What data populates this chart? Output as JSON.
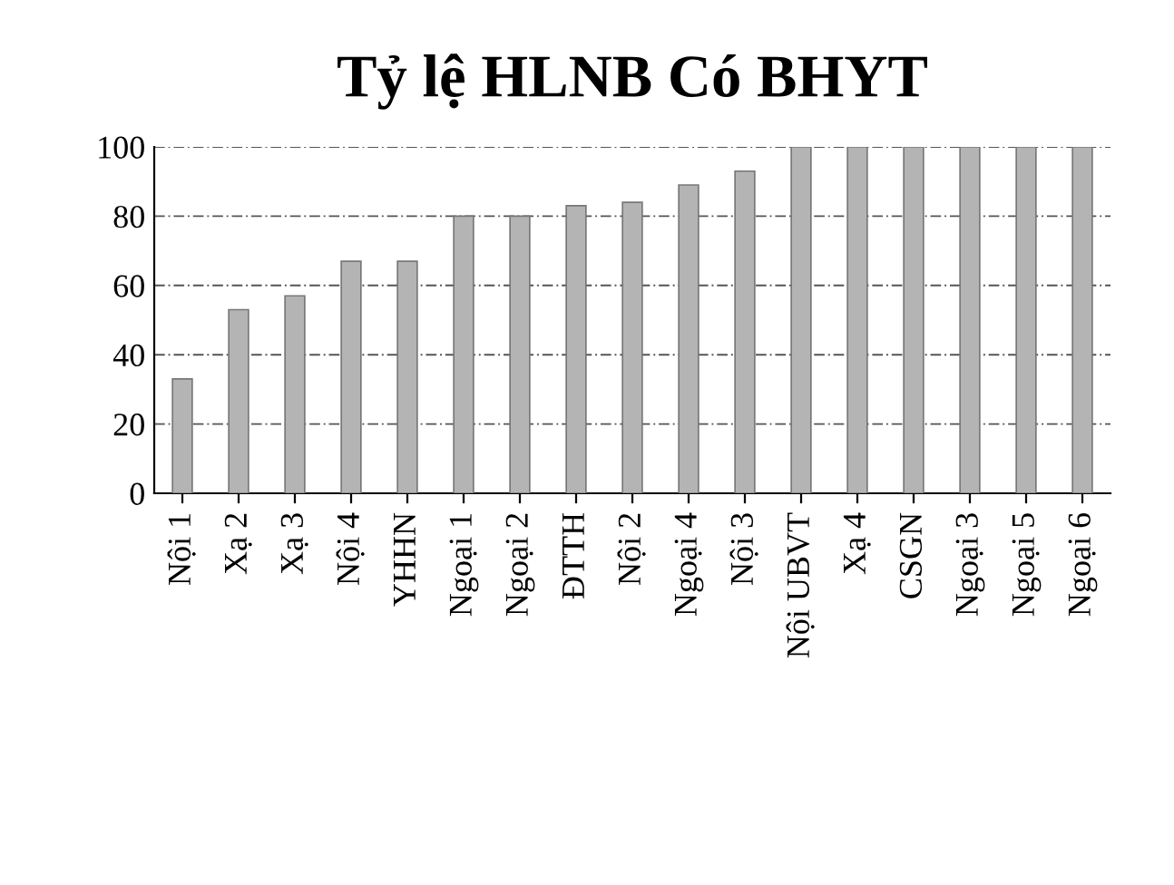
{
  "chart_data": {
    "type": "bar",
    "title": "Tỷ lệ HLNB Có BHYT",
    "categories": [
      "Nội 1",
      "Xạ 2",
      "Xạ 3",
      "Nội 4",
      "YHHN",
      "Ngoại 1",
      "Ngoại 2",
      "ĐTTH",
      "Nội 2",
      "Ngoại 4",
      "Nội 3",
      "Nội UBVT",
      "Xạ 4",
      "CSGN",
      "Ngoại 3",
      "Ngoại 5",
      "Ngoại 6"
    ],
    "values": [
      33,
      53,
      57,
      67,
      67,
      80,
      80,
      83,
      84,
      89,
      93,
      100,
      100,
      100,
      100,
      100,
      100
    ],
    "color": "#b4b4b4",
    "ylim": [
      0,
      100
    ],
    "yticks": [
      0,
      20,
      40,
      60,
      80,
      100
    ],
    "grid": "y"
  }
}
